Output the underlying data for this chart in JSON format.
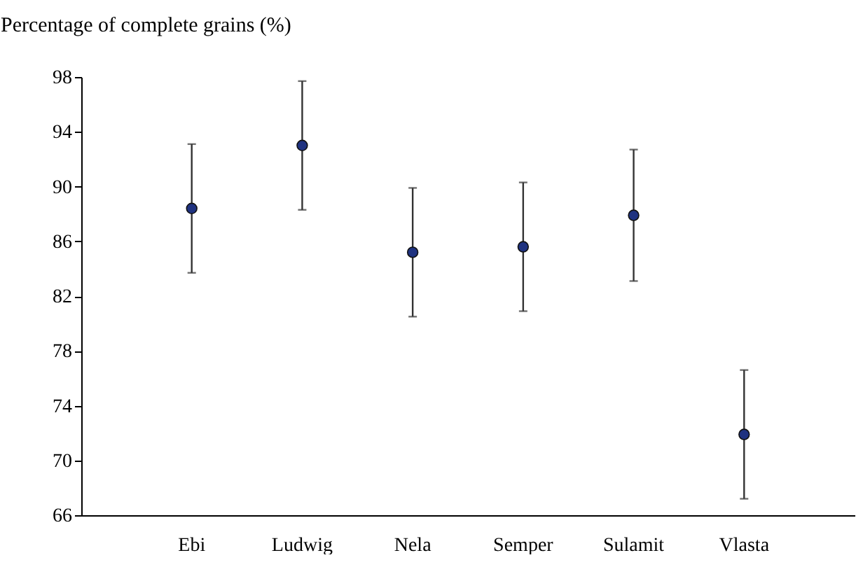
{
  "chart_data": {
    "type": "scatter",
    "ylabel": "Percentage of complete grains (%)",
    "categories": [
      "Ebi",
      "Ludwig",
      "Nela",
      "Semper",
      "Sulamit",
      "Vlasta"
    ],
    "series": [
      {
        "color": "#1f3280",
        "values": [
          88.4,
          93.0,
          85.2,
          85.6,
          87.9,
          71.9
        ],
        "errors": [
          4.7,
          4.7,
          4.7,
          4.7,
          4.8,
          4.7
        ]
      }
    ],
    "ylim": [
      66,
      98
    ],
    "yticks": [
      66,
      70,
      74,
      78,
      82,
      86,
      90,
      94,
      98
    ],
    "grid": false,
    "marker": "circle",
    "legend": false
  }
}
